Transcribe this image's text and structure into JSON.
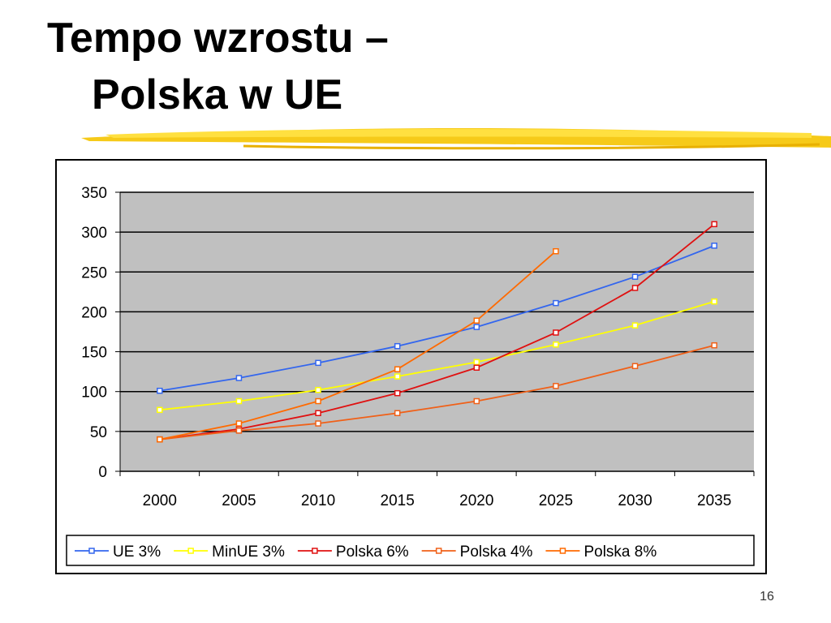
{
  "chart_data": {
    "type": "line",
    "title": [
      "Tempo wzrostu –",
      "Polska w UE"
    ],
    "categories": [
      "2000",
      "2005",
      "2010",
      "2015",
      "2020",
      "2025",
      "2030",
      "2035"
    ],
    "series": [
      {
        "name": "UE 3%",
        "color": "#3366ee",
        "values": [
          101,
          117,
          136,
          157,
          181,
          211,
          244,
          283
        ]
      },
      {
        "name": "MinUE 3%",
        "color": "#ffff00",
        "values": [
          77,
          88,
          102,
          119,
          137,
          159,
          183,
          213
        ]
      },
      {
        "name": "Polska 6%",
        "color": "#e01010",
        "values": [
          40,
          53,
          73,
          98,
          130,
          174,
          230,
          310
        ]
      },
      {
        "name": "Polska 4%",
        "color": "#f06018",
        "values": [
          40,
          51,
          60,
          73,
          88,
          107,
          132,
          158
        ]
      },
      {
        "name": "Polska 8%",
        "color": "#ff6a00",
        "values": [
          40,
          60,
          88,
          128,
          189,
          276,
          null,
          null
        ]
      }
    ],
    "ylim": [
      0,
      350
    ],
    "yticks": [
      0,
      50,
      100,
      150,
      200,
      250,
      300,
      350
    ],
    "grid": true,
    "legend": "bottom"
  },
  "slide_number": "16"
}
